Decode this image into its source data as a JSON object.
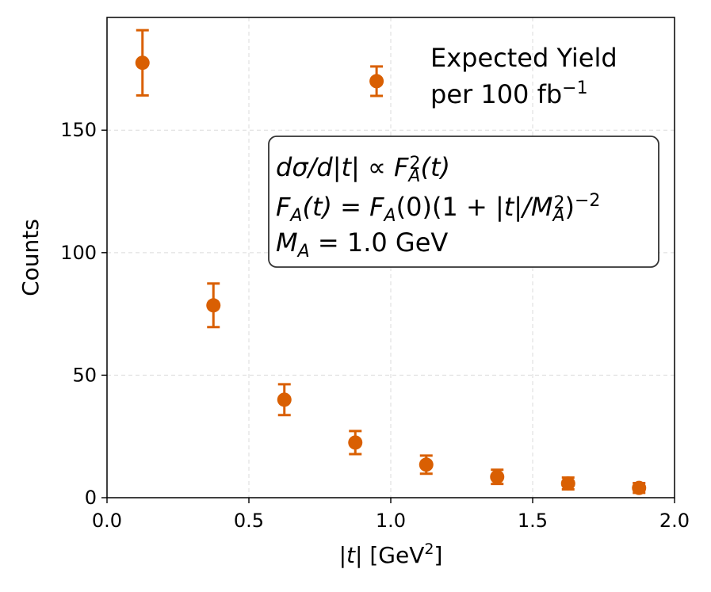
{
  "chart_data": {
    "type": "scatter",
    "series": [
      {
        "name": "Expected Yield",
        "color": "#d95f02",
        "x": [
          0.125,
          0.375,
          0.625,
          0.875,
          1.125,
          1.375,
          1.625,
          1.875,
          0.95
        ],
        "y": [
          177.5,
          78.5,
          40.0,
          22.5,
          13.5,
          8.5,
          5.8,
          4.0,
          170.0
        ],
        "yerr": [
          13.3,
          8.9,
          6.3,
          4.7,
          3.7,
          2.9,
          2.4,
          2.0,
          6.0
        ]
      }
    ],
    "xlabel": "|t| [GeV²]",
    "ylabel": "Counts",
    "xlim": [
      0.0,
      2.0
    ],
    "ylim": [
      0,
      196
    ],
    "xticks": [
      "0.0",
      "0.5",
      "1.0",
      "1.5",
      "2.0"
    ],
    "xtick_values": [
      0.0,
      0.5,
      1.0,
      1.5,
      2.0
    ],
    "yticks": [
      "0",
      "50",
      "100",
      "150"
    ],
    "ytick_values": [
      0,
      50,
      100,
      150
    ],
    "grid": true,
    "annotation": {
      "line1": "Expected Yield",
      "line2_prefix": "per 100 fb",
      "line2_sup": "−1"
    },
    "formula_box": {
      "line1": "dσ/d|t| ∝ F_A²(t)",
      "line2": "F_A(t) = F_A(0)(1 + |t|/M_A²)⁻²",
      "line3": "M_A = 1.0 GeV"
    }
  }
}
